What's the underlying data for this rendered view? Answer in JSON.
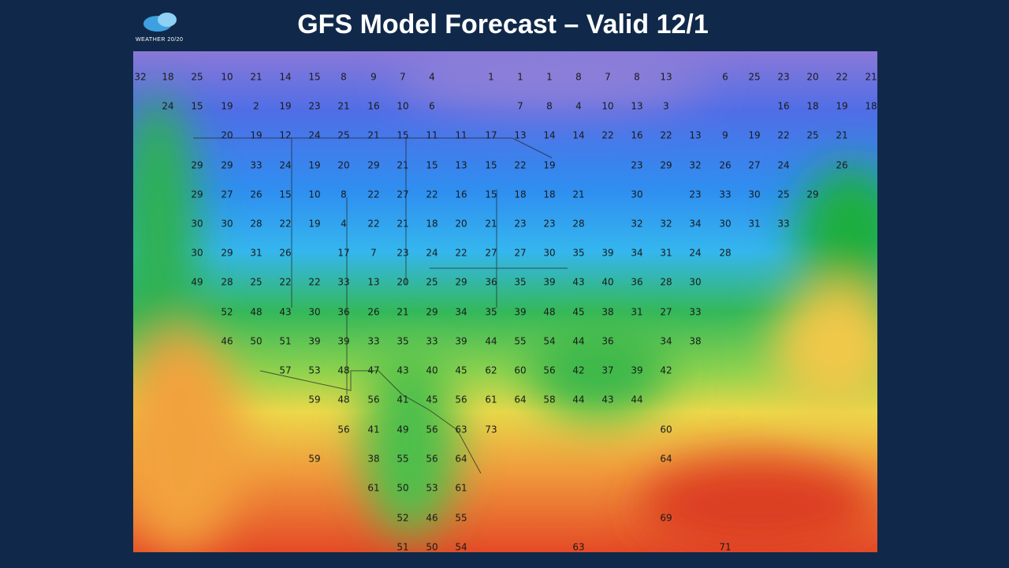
{
  "header": {
    "logo_text": "WEATHER 20/20",
    "title": "GFS Model Forecast – Valid 12/1"
  },
  "map": {
    "temperature_rows": [
      [
        32,
        18,
        25,
        10,
        21,
        14,
        15,
        8,
        9,
        7,
        4,
        1,
        1,
        1,
        8,
        7,
        8,
        13,
        6,
        25,
        23,
        20,
        22,
        21
      ],
      [
        24,
        15,
        19,
        2,
        19,
        23,
        21,
        16,
        10,
        6,
        7,
        8,
        4,
        10,
        13,
        3,
        16,
        18,
        19,
        18
      ],
      [
        20,
        19,
        12,
        24,
        25,
        21,
        15,
        11,
        11,
        17,
        13,
        14,
        14,
        22,
        16,
        22,
        13,
        9,
        19,
        22,
        25,
        21
      ],
      [
        29,
        29,
        33,
        24,
        19,
        20,
        29,
        21,
        15,
        13,
        15,
        22,
        19,
        23,
        29,
        32,
        26,
        27,
        24,
        26
      ],
      [
        29,
        27,
        26,
        15,
        10,
        8,
        22,
        27,
        22,
        16,
        15,
        18,
        18,
        21,
        30,
        23,
        33,
        30,
        25,
        29
      ],
      [
        30,
        30,
        28,
        22,
        19,
        4,
        22,
        21,
        18,
        20,
        21,
        23,
        23,
        28,
        32,
        32,
        34,
        30,
        31,
        33
      ],
      [
        30,
        29,
        31,
        26,
        17,
        7,
        23,
        24,
        22,
        27,
        27,
        30,
        35,
        39,
        34,
        31,
        24,
        28
      ],
      [
        49,
        28,
        25,
        22,
        22,
        33,
        13,
        20,
        25,
        29,
        36,
        35,
        39,
        43,
        40,
        36,
        28,
        30
      ],
      [
        52,
        48,
        43,
        30,
        36,
        26,
        21,
        29,
        34,
        35,
        39,
        48,
        45,
        38,
        31,
        27,
        33
      ],
      [
        46,
        50,
        51,
        39,
        39,
        33,
        35,
        33,
        39,
        44,
        55,
        54,
        44,
        36,
        34,
        38
      ],
      [
        57,
        53,
        48,
        47,
        43,
        40,
        45,
        62,
        60,
        56,
        42,
        37,
        39,
        42
      ],
      [
        59,
        48,
        56,
        41,
        45,
        56,
        61,
        64,
        58,
        44,
        43,
        44
      ],
      [
        56,
        41,
        49,
        56,
        63,
        73,
        60
      ],
      [
        59,
        38,
        55,
        56,
        64,
        64
      ],
      [
        61,
        50,
        53,
        61
      ],
      [
        52,
        46,
        55,
        69
      ],
      [
        51,
        50,
        54,
        63,
        71
      ]
    ]
  }
}
